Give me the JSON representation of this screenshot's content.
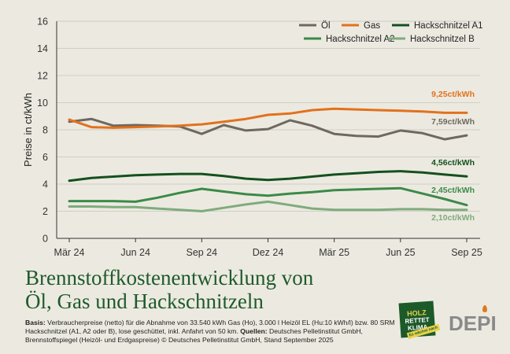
{
  "chart_data": {
    "type": "line",
    "ylabel": "Preise in ct/kWh",
    "xlabel": "",
    "ylim": [
      0,
      16
    ],
    "yticks": [
      0,
      2,
      4,
      6,
      8,
      10,
      12,
      14,
      16
    ],
    "xlim": [
      0,
      18
    ],
    "xticks": [
      {
        "pos": 0,
        "label": "Mär 24"
      },
      {
        "pos": 3,
        "label": "Jun 24"
      },
      {
        "pos": 6,
        "label": "Sep 24"
      },
      {
        "pos": 9,
        "label": "Dez 24"
      },
      {
        "pos": 12,
        "label": "Mär 25"
      },
      {
        "pos": 15,
        "label": "Jun 25"
      },
      {
        "pos": 18,
        "label": "Sep 25"
      }
    ],
    "grid": "horizontal",
    "legend_position": "top-right",
    "series": [
      {
        "name": "Öl",
        "color": "#6e6860",
        "end_label": "7,59ct/kWh",
        "values": [
          8.6,
          8.8,
          8.3,
          8.35,
          8.3,
          8.25,
          7.7,
          8.35,
          7.95,
          8.05,
          8.7,
          8.3,
          7.7,
          7.55,
          7.5,
          7.95,
          7.75,
          7.3,
          7.59
        ]
      },
      {
        "name": "Gas",
        "color": "#e2711d",
        "end_label": "9,25ct/kWh",
        "values": [
          8.75,
          8.2,
          8.15,
          8.2,
          8.25,
          8.3,
          8.4,
          8.6,
          8.8,
          9.1,
          9.2,
          9.45,
          9.55,
          9.5,
          9.45,
          9.4,
          9.35,
          9.25,
          9.25
        ]
      },
      {
        "name": "Hackschnitzel A1",
        "color": "#14501e",
        "end_label": "4,56ct/kWh",
        "values": [
          4.25,
          4.45,
          4.55,
          4.65,
          4.7,
          4.75,
          4.75,
          4.6,
          4.4,
          4.3,
          4.4,
          4.55,
          4.7,
          4.8,
          4.9,
          4.95,
          4.85,
          4.7,
          4.56
        ]
      },
      {
        "name": "Hackschnitzel A2",
        "color": "#3b8a48",
        "end_label": "2,45ct/kWh",
        "values": [
          2.75,
          2.75,
          2.75,
          2.7,
          3.0,
          3.35,
          3.65,
          3.45,
          3.25,
          3.15,
          3.3,
          3.4,
          3.55,
          3.6,
          3.65,
          3.7,
          3.3,
          2.9,
          2.45
        ]
      },
      {
        "name": "Hackschnitzel B",
        "color": "#7fab7e",
        "end_label": "2,10ct/kWh",
        "values": [
          2.35,
          2.35,
          2.3,
          2.3,
          2.2,
          2.1,
          2.0,
          2.25,
          2.5,
          2.7,
          2.45,
          2.2,
          2.1,
          2.1,
          2.1,
          2.15,
          2.15,
          2.1,
          2.1
        ]
      }
    ],
    "title": "Brennstoffkostenentwicklung von Öl, Gas und Hackschnitzeln"
  },
  "title_lines": [
    "Brennstoffkostenentwicklung von",
    "Öl, Gas und Hackschnitzeln"
  ],
  "footnote": {
    "basis_label": "Basis:",
    "basis_text": " Verbraucherpreise (netto) für die Abnahme von 33.540 kWh Gas (Ho), 3.000 l Heizöl EL (Hu:10 kWh/l) bzw. 80 SRM Hackschnitzel (A1, A2 oder B), lose geschüttet, inkl. Anfahrt von 50 km. ",
    "sources_label": "Quellen:",
    "sources_text": " Deutsches Pelletinstitut GmbH, Brennstoffspiegel (Heizöl- und Erdgaspreise) © Deutsches Pelletinstitut GmbH, Stand September 2025"
  },
  "logos": {
    "badge_line1": "HOLZ",
    "badge_line2": "RETTET",
    "badge_line3": "KLIMA",
    "badge_tag": "Es wächst nach",
    "depi": "DEPI"
  }
}
